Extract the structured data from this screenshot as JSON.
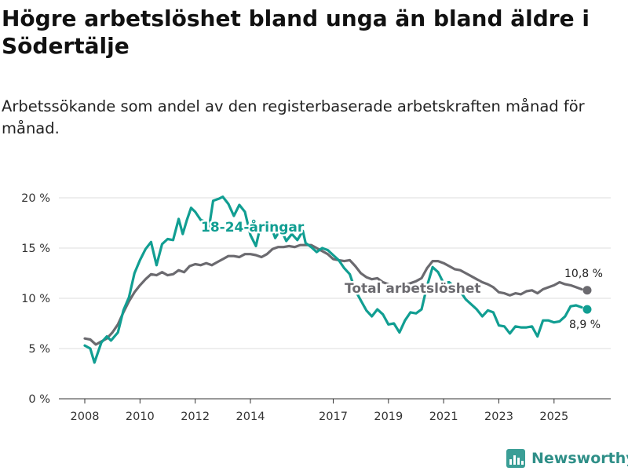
{
  "title": "Högre arbetslöshet bland unga än bland äldre i Södertälje",
  "subtitle": "Arbetssökande som andel av den registerbaserade arbetskraften månad för månad.",
  "brand": {
    "name": "Newsworthy",
    "icon": "newsworthy-logo-icon"
  },
  "colors": {
    "youth": "#119e92",
    "total": "#6b6a6f",
    "grid": "#dcdcdc",
    "axis": "#333333"
  },
  "chart_data": {
    "type": "line",
    "title": "Högre arbetslöshet bland unga än bland äldre i Södertälje",
    "xlabel": "",
    "ylabel": "",
    "xlim": [
      2008,
      2026.2
    ],
    "ylim": [
      0,
      20
    ],
    "y_ticks": [
      0,
      5,
      10,
      15,
      20
    ],
    "y_tick_labels": [
      "0 %",
      "5 %",
      "10 %",
      "15 %",
      "20 %"
    ],
    "x_ticks": [
      2008,
      2010,
      2012,
      2014,
      2017,
      2019,
      2021,
      2023,
      2025
    ],
    "x_tick_labels": [
      "2008",
      "2010",
      "2012",
      "2014",
      "2017",
      "2019",
      "2021",
      "2023",
      "2025"
    ],
    "grid": true,
    "series": [
      {
        "name": "18-24-åringar",
        "label": "18-24-åringar",
        "color": "#119e92",
        "end_label": "8,9 %",
        "points": [
          [
            2008.0,
            5.3
          ],
          [
            2008.2,
            5.0
          ],
          [
            2008.35,
            3.6
          ],
          [
            2008.6,
            5.6
          ],
          [
            2008.8,
            6.2
          ],
          [
            2008.95,
            5.8
          ],
          [
            2009.2,
            6.6
          ],
          [
            2009.4,
            8.8
          ],
          [
            2009.6,
            10.1
          ],
          [
            2009.8,
            12.5
          ],
          [
            2010.0,
            13.8
          ],
          [
            2010.2,
            14.9
          ],
          [
            2010.4,
            15.6
          ],
          [
            2010.6,
            13.3
          ],
          [
            2010.8,
            15.4
          ],
          [
            2011.0,
            15.9
          ],
          [
            2011.2,
            15.8
          ],
          [
            2011.4,
            17.9
          ],
          [
            2011.55,
            16.4
          ],
          [
            2011.7,
            17.8
          ],
          [
            2011.85,
            19.0
          ],
          [
            2012.0,
            18.6
          ],
          [
            2012.2,
            17.8
          ],
          [
            2012.4,
            17.6
          ],
          [
            2012.5,
            17.0
          ],
          [
            2012.65,
            19.7
          ],
          [
            2012.85,
            19.9
          ],
          [
            2013.0,
            20.1
          ],
          [
            2013.2,
            19.4
          ],
          [
            2013.4,
            18.2
          ],
          [
            2013.6,
            19.3
          ],
          [
            2013.8,
            18.6
          ],
          [
            2014.0,
            16.3
          ],
          [
            2014.2,
            15.2
          ],
          [
            2014.35,
            17.0
          ],
          [
            2014.5,
            17.3
          ],
          [
            2014.7,
            17.5
          ],
          [
            2014.9,
            16.0
          ],
          [
            2015.1,
            16.9
          ],
          [
            2015.3,
            15.7
          ],
          [
            2015.5,
            16.4
          ],
          [
            2015.7,
            15.8
          ],
          [
            2015.9,
            16.7
          ],
          [
            2016.0,
            15.5
          ],
          [
            2016.2,
            15.1
          ],
          [
            2016.4,
            14.6
          ],
          [
            2016.6,
            15.0
          ],
          [
            2016.8,
            14.8
          ],
          [
            2017.0,
            14.3
          ],
          [
            2017.2,
            13.8
          ],
          [
            2017.4,
            13.0
          ],
          [
            2017.6,
            12.4
          ],
          [
            2017.8,
            10.8
          ],
          [
            2018.0,
            9.8
          ],
          [
            2018.2,
            8.8
          ],
          [
            2018.4,
            8.2
          ],
          [
            2018.6,
            8.9
          ],
          [
            2018.8,
            8.4
          ],
          [
            2019.0,
            7.4
          ],
          [
            2019.2,
            7.5
          ],
          [
            2019.4,
            6.6
          ],
          [
            2019.6,
            7.8
          ],
          [
            2019.8,
            8.6
          ],
          [
            2020.0,
            8.5
          ],
          [
            2020.2,
            8.9
          ],
          [
            2020.4,
            11.2
          ],
          [
            2020.6,
            13.1
          ],
          [
            2020.8,
            12.6
          ],
          [
            2021.0,
            11.5
          ],
          [
            2021.2,
            11.6
          ],
          [
            2021.4,
            11.1
          ],
          [
            2021.6,
            10.7
          ],
          [
            2021.8,
            9.9
          ],
          [
            2022.0,
            9.4
          ],
          [
            2022.2,
            8.9
          ],
          [
            2022.4,
            8.2
          ],
          [
            2022.6,
            8.8
          ],
          [
            2022.8,
            8.6
          ],
          [
            2023.0,
            7.3
          ],
          [
            2023.2,
            7.2
          ],
          [
            2023.4,
            6.5
          ],
          [
            2023.6,
            7.2
          ],
          [
            2023.8,
            7.1
          ],
          [
            2024.0,
            7.1
          ],
          [
            2024.2,
            7.2
          ],
          [
            2024.4,
            6.2
          ],
          [
            2024.6,
            7.8
          ],
          [
            2024.8,
            7.8
          ],
          [
            2025.0,
            7.6
          ],
          [
            2025.2,
            7.7
          ],
          [
            2025.4,
            8.2
          ],
          [
            2025.6,
            9.2
          ],
          [
            2025.8,
            9.3
          ],
          [
            2026.0,
            9.1
          ]
        ],
        "end_point": [
          2026.2,
          8.9
        ]
      },
      {
        "name": "Total arbetslöshet",
        "label": "Total arbetslöshet",
        "color": "#6b6a6f",
        "end_label": "10,8 %",
        "points": [
          [
            2008.0,
            6.0
          ],
          [
            2008.2,
            5.9
          ],
          [
            2008.4,
            5.4
          ],
          [
            2008.6,
            5.7
          ],
          [
            2008.8,
            6.0
          ],
          [
            2009.0,
            6.6
          ],
          [
            2009.2,
            7.4
          ],
          [
            2009.4,
            8.6
          ],
          [
            2009.6,
            9.7
          ],
          [
            2009.8,
            10.6
          ],
          [
            2010.0,
            11.3
          ],
          [
            2010.2,
            11.9
          ],
          [
            2010.4,
            12.4
          ],
          [
            2010.6,
            12.3
          ],
          [
            2010.8,
            12.6
          ],
          [
            2011.0,
            12.3
          ],
          [
            2011.2,
            12.4
          ],
          [
            2011.4,
            12.8
          ],
          [
            2011.6,
            12.6
          ],
          [
            2011.8,
            13.2
          ],
          [
            2012.0,
            13.4
          ],
          [
            2012.2,
            13.3
          ],
          [
            2012.4,
            13.5
          ],
          [
            2012.6,
            13.3
          ],
          [
            2012.8,
            13.6
          ],
          [
            2013.0,
            13.9
          ],
          [
            2013.2,
            14.2
          ],
          [
            2013.4,
            14.2
          ],
          [
            2013.6,
            14.1
          ],
          [
            2013.8,
            14.4
          ],
          [
            2014.0,
            14.4
          ],
          [
            2014.2,
            14.3
          ],
          [
            2014.4,
            14.1
          ],
          [
            2014.6,
            14.4
          ],
          [
            2014.8,
            14.9
          ],
          [
            2015.0,
            15.1
          ],
          [
            2015.2,
            15.1
          ],
          [
            2015.4,
            15.2
          ],
          [
            2015.6,
            15.1
          ],
          [
            2015.8,
            15.3
          ],
          [
            2016.0,
            15.3
          ],
          [
            2016.2,
            15.3
          ],
          [
            2016.4,
            15.0
          ],
          [
            2016.6,
            14.7
          ],
          [
            2016.8,
            14.4
          ],
          [
            2017.0,
            13.9
          ],
          [
            2017.2,
            13.8
          ],
          [
            2017.4,
            13.7
          ],
          [
            2017.6,
            13.8
          ],
          [
            2017.8,
            13.2
          ],
          [
            2018.0,
            12.5
          ],
          [
            2018.2,
            12.1
          ],
          [
            2018.4,
            11.9
          ],
          [
            2018.6,
            12.0
          ],
          [
            2018.8,
            11.6
          ],
          [
            2019.0,
            11.4
          ],
          [
            2019.2,
            11.2
          ],
          [
            2019.4,
            11.0
          ],
          [
            2019.6,
            11.3
          ],
          [
            2019.8,
            11.5
          ],
          [
            2020.0,
            11.7
          ],
          [
            2020.2,
            12.0
          ],
          [
            2020.4,
            13.0
          ],
          [
            2020.6,
            13.7
          ],
          [
            2020.8,
            13.7
          ],
          [
            2021.0,
            13.5
          ],
          [
            2021.2,
            13.2
          ],
          [
            2021.4,
            12.9
          ],
          [
            2021.6,
            12.8
          ],
          [
            2021.8,
            12.5
          ],
          [
            2022.0,
            12.2
          ],
          [
            2022.2,
            11.9
          ],
          [
            2022.4,
            11.6
          ],
          [
            2022.6,
            11.4
          ],
          [
            2022.8,
            11.1
          ],
          [
            2023.0,
            10.6
          ],
          [
            2023.2,
            10.5
          ],
          [
            2023.4,
            10.3
          ],
          [
            2023.6,
            10.5
          ],
          [
            2023.8,
            10.4
          ],
          [
            2024.0,
            10.7
          ],
          [
            2024.2,
            10.8
          ],
          [
            2024.4,
            10.5
          ],
          [
            2024.6,
            10.9
          ],
          [
            2024.8,
            11.1
          ],
          [
            2025.0,
            11.3
          ],
          [
            2025.2,
            11.6
          ],
          [
            2025.4,
            11.4
          ],
          [
            2025.6,
            11.3
          ],
          [
            2025.8,
            11.1
          ],
          [
            2026.0,
            10.9
          ]
        ],
        "end_point": [
          2026.2,
          10.8
        ]
      }
    ]
  }
}
